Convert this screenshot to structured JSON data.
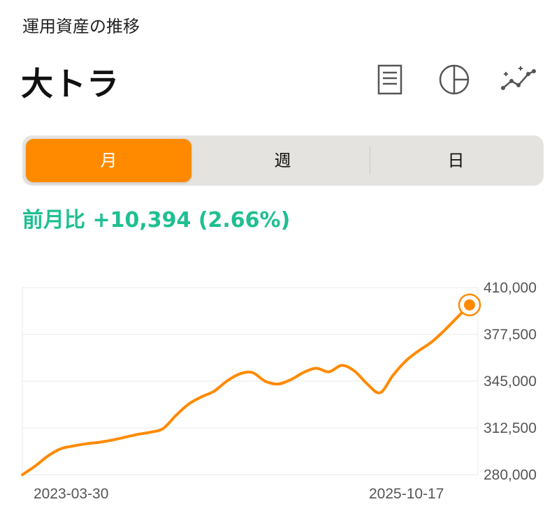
{
  "header": {
    "label": "運用資産の推移",
    "title": "大トラ"
  },
  "toolbar": {
    "icons": [
      "document-icon",
      "pie-chart-icon",
      "trend-chart-icon"
    ]
  },
  "period_tabs": {
    "items": [
      {
        "label": "月",
        "active": true
      },
      {
        "label": "週",
        "active": false
      },
      {
        "label": "日",
        "active": false
      }
    ]
  },
  "change": {
    "label": "前月比",
    "amount": "+10,394",
    "percent": "(2.66%)"
  },
  "colors": {
    "accent": "#ff8a00",
    "positive": "#1fbf92",
    "segment_bg": "#e4e3df",
    "grid": "#e9e9e9"
  },
  "chart_data": {
    "type": "line",
    "x_start_label": "2023-03-30",
    "x_end_label": "2025-10-17",
    "ylim": [
      280000,
      410000
    ],
    "y_ticks": [
      410000,
      377500,
      345000,
      312500,
      280000
    ],
    "y_tick_labels": [
      "410,000",
      "377,500",
      "345,000",
      "312,500",
      "280,000"
    ],
    "grid": true,
    "series": [
      {
        "values": [
          280000,
          286000,
          293000,
          298000,
          300000,
          301500,
          302500,
          304000,
          306000,
          308000,
          309500,
          312000,
          321000,
          329000,
          334000,
          338000,
          345000,
          350000,
          351000,
          345000,
          343000,
          346000,
          351000,
          354000,
          351500,
          356000,
          352000,
          343000,
          337000,
          349000,
          359000,
          366000,
          372000,
          380000,
          389000,
          398000
        ],
        "last_point_highlight": true
      }
    ]
  }
}
